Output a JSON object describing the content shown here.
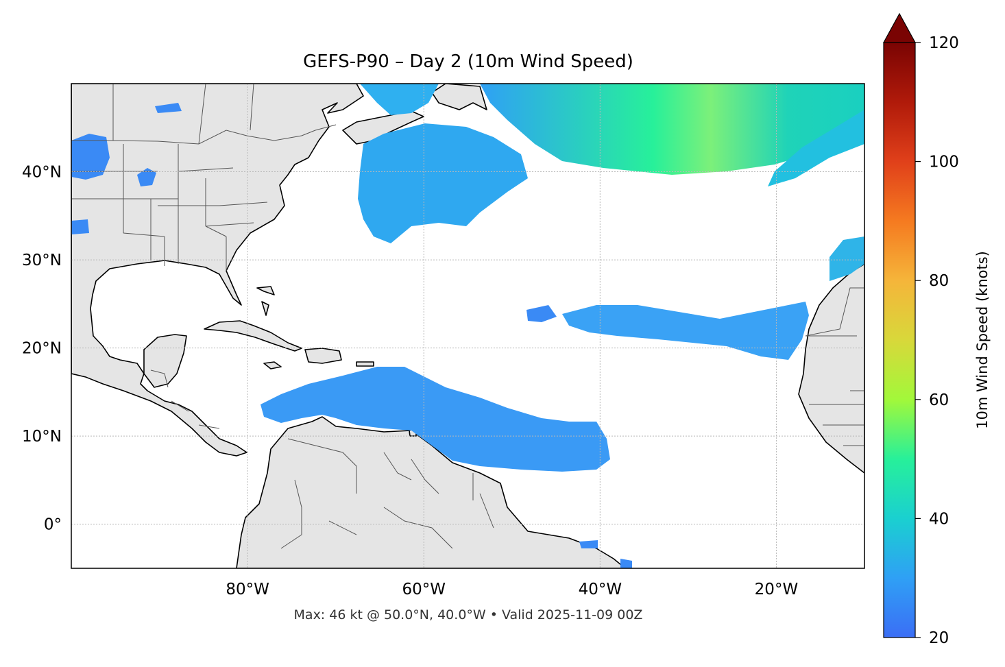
{
  "title": "GEFS-P90 – Day 2 (10m Wind Speed)",
  "footer": "Max: 46 kt @ 50.0°N, 40.0°W • Valid 2025-11-09 00Z",
  "map": {
    "extent": {
      "lon": [
        -100,
        -10
      ],
      "lat": [
        -5,
        50
      ]
    },
    "x_ticks": [
      {
        "value": -80,
        "label": "80°W"
      },
      {
        "value": -60,
        "label": "60°W"
      },
      {
        "value": -40,
        "label": "40°W"
      },
      {
        "value": -20,
        "label": "20°W"
      }
    ],
    "y_ticks": [
      {
        "value": 40,
        "label": "40°N"
      },
      {
        "value": 30,
        "label": "30°N"
      },
      {
        "value": 20,
        "label": "20°N"
      },
      {
        "value": 10,
        "label": "10°N"
      },
      {
        "value": 0,
        "label": "0°"
      }
    ],
    "grid": true,
    "land_color": "#e5e5e5",
    "ocean_color": "#ffffff",
    "field_threshold_kt": 20
  },
  "colorbar": {
    "label": "10m Wind Speed (knots)",
    "min": 20,
    "max": 120,
    "extend": "max",
    "ticks": [
      {
        "value": 20,
        "label": "20"
      },
      {
        "value": 40,
        "label": "40"
      },
      {
        "value": 60,
        "label": "60"
      },
      {
        "value": 80,
        "label": "80"
      },
      {
        "value": 100,
        "label": "100"
      },
      {
        "value": 120,
        "label": "120"
      }
    ],
    "colormap": [
      "#3b6ef5",
      "#2fa0f5",
      "#1ad0d0",
      "#27f09a",
      "#a2f83a",
      "#d8d83a",
      "#f5b53a",
      "#f57a20",
      "#e0401a",
      "#b01a0a",
      "#7a0403"
    ]
  },
  "max_point": {
    "speed_kt": 46,
    "lat": 50.0,
    "lon": -40.0
  }
}
